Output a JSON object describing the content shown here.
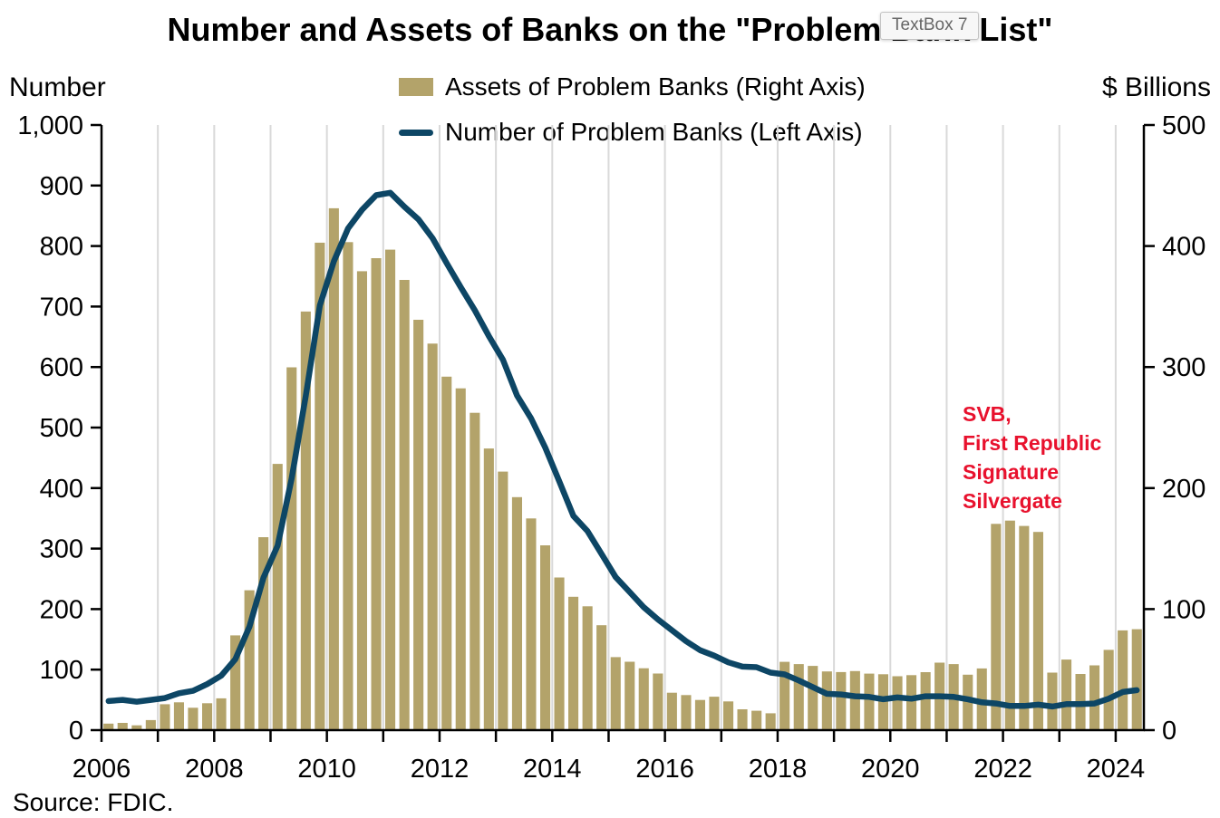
{
  "title": "Number and Assets of Banks on the \"Problem Bank List\"",
  "textbox": {
    "label": "TextBox 7"
  },
  "source": "Source: FDIC.",
  "annotation": {
    "lines": [
      "SVB,",
      "First Republic",
      "Signature",
      "Silvergate"
    ],
    "color": "#e8112d"
  },
  "legend": [
    {
      "label": "Assets of Problem Banks (Right Axis)",
      "marker": "bar",
      "color": "#b3a36a"
    },
    {
      "label": "Number of Problem Banks (Left Axis)",
      "marker": "line",
      "color": "#0d4665"
    }
  ],
  "colors": {
    "bar": "#b3a36a",
    "line": "#0d4665",
    "gridline": "#d9d9d9",
    "axis": "#000000",
    "annotation_red": "#e8112d"
  },
  "chart_data": {
    "type": "bar+line",
    "title": "Number and Assets of Banks on the \"Problem Bank List\"",
    "grid": "vertical yearly gridlines only",
    "legend_position": "top-center",
    "quarters": [
      "2006 Q1",
      "2006 Q2",
      "2006 Q3",
      "2006 Q4",
      "2007 Q1",
      "2007 Q2",
      "2007 Q3",
      "2007 Q4",
      "2008 Q1",
      "2008 Q2",
      "2008 Q3",
      "2008 Q4",
      "2009 Q1",
      "2009 Q2",
      "2009 Q3",
      "2009 Q4",
      "2010 Q1",
      "2010 Q2",
      "2010 Q3",
      "2010 Q4",
      "2011 Q1",
      "2011 Q2",
      "2011 Q3",
      "2011 Q4",
      "2012 Q1",
      "2012 Q2",
      "2012 Q3",
      "2012 Q4",
      "2013 Q1",
      "2013 Q2",
      "2013 Q3",
      "2013 Q4",
      "2014 Q1",
      "2014 Q2",
      "2014 Q3",
      "2014 Q4",
      "2015 Q1",
      "2015 Q2",
      "2015 Q3",
      "2015 Q4",
      "2016 Q1",
      "2016 Q2",
      "2016 Q3",
      "2016 Q4",
      "2017 Q1",
      "2017 Q2",
      "2017 Q3",
      "2017 Q4",
      "2018 Q1",
      "2018 Q2",
      "2018 Q3",
      "2018 Q4",
      "2019 Q1",
      "2019 Q2",
      "2019 Q3",
      "2019 Q4",
      "2020 Q1",
      "2020 Q2",
      "2020 Q3",
      "2020 Q4",
      "2021 Q1",
      "2021 Q2",
      "2021 Q3",
      "2021 Q4",
      "2022 Q1",
      "2022 Q2",
      "2022 Q3",
      "2022 Q4",
      "2023 Q1",
      "2023 Q2",
      "2023 Q3",
      "2023 Q4",
      "2024 Q1",
      "2024 Q2"
    ],
    "series": [
      {
        "name": "Assets of Problem Banks (Right Axis)",
        "type": "bar",
        "axis": "right",
        "unit": "$ billions",
        "values": [
          5.4,
          6.0,
          4.0,
          8.3,
          21.4,
          23.0,
          18.5,
          22.2,
          26.3,
          78.3,
          115.6,
          159.4,
          220.0,
          299.8,
          345.9,
          402.8,
          431.2,
          403.2,
          379.2,
          390.0,
          397.0,
          372.0,
          339.1,
          319.4,
          292.1,
          282.4,
          262.2,
          232.7,
          213.6,
          192.5,
          174.9,
          152.7,
          126.1,
          110.2,
          102.3,
          86.7,
          60.3,
          56.5,
          51.1,
          46.8,
          30.9,
          29.0,
          24.9,
          27.6,
          23.7,
          17.2,
          16.0,
          13.9,
          56.4,
          54.6,
          53.1,
          48.5,
          48.0,
          48.8,
          46.7,
          46.2,
          44.5,
          45.4,
          47.9,
          55.8,
          54.6,
          45.8,
          51.0,
          170.4,
          173.1,
          168.7,
          163.8,
          47.5,
          58.3,
          46.4,
          53.5,
          66.3,
          82.4,
          83.4
        ]
      },
      {
        "name": "Number of Problem Banks (Left Axis)",
        "type": "line",
        "axis": "left",
        "unit": "banks",
        "values": [
          48,
          50,
          47,
          50,
          53,
          61,
          65,
          76,
          90,
          117,
          171,
          252,
          305,
          416,
          552,
          702,
          775,
          829,
          860,
          884,
          888,
          865,
          844,
          813,
          772,
          732,
          694,
          651,
          612,
          553,
          515,
          467,
          411,
          354,
          329,
          291,
          253,
          228,
          203,
          183,
          165,
          147,
          132,
          123,
          112,
          105,
          104,
          95,
          92,
          82,
          71,
          60,
          59,
          56,
          55,
          51,
          54,
          52,
          56,
          56,
          55,
          51,
          46,
          44,
          40,
          40,
          42,
          39,
          43,
          43,
          44,
          52,
          63,
          66
        ]
      }
    ],
    "left_axis": {
      "title": "Number",
      "min": 0,
      "max": 1000,
      "tick_values": [
        0,
        100,
        200,
        300,
        400,
        500,
        600,
        700,
        800,
        900,
        1000
      ],
      "tick_labels": [
        "0",
        "100",
        "200",
        "300",
        "400",
        "500",
        "600",
        "700",
        "800",
        "900",
        "1,000"
      ]
    },
    "right_axis": {
      "title": "$ Billions",
      "min": 0,
      "max": 500,
      "tick_values": [
        0,
        100,
        200,
        300,
        400,
        500
      ],
      "tick_labels": [
        "0",
        "100",
        "200",
        "300",
        "400",
        "500"
      ]
    },
    "x_axis": {
      "tick_years": [
        2006,
        2007,
        2008,
        2009,
        2010,
        2011,
        2012,
        2013,
        2014,
        2015,
        2016,
        2017,
        2018,
        2019,
        2020,
        2021,
        2022,
        2023,
        2024
      ],
      "label_years": [
        2006,
        2008,
        2010,
        2012,
        2014,
        2016,
        2018,
        2020,
        2022,
        2024
      ]
    }
  }
}
